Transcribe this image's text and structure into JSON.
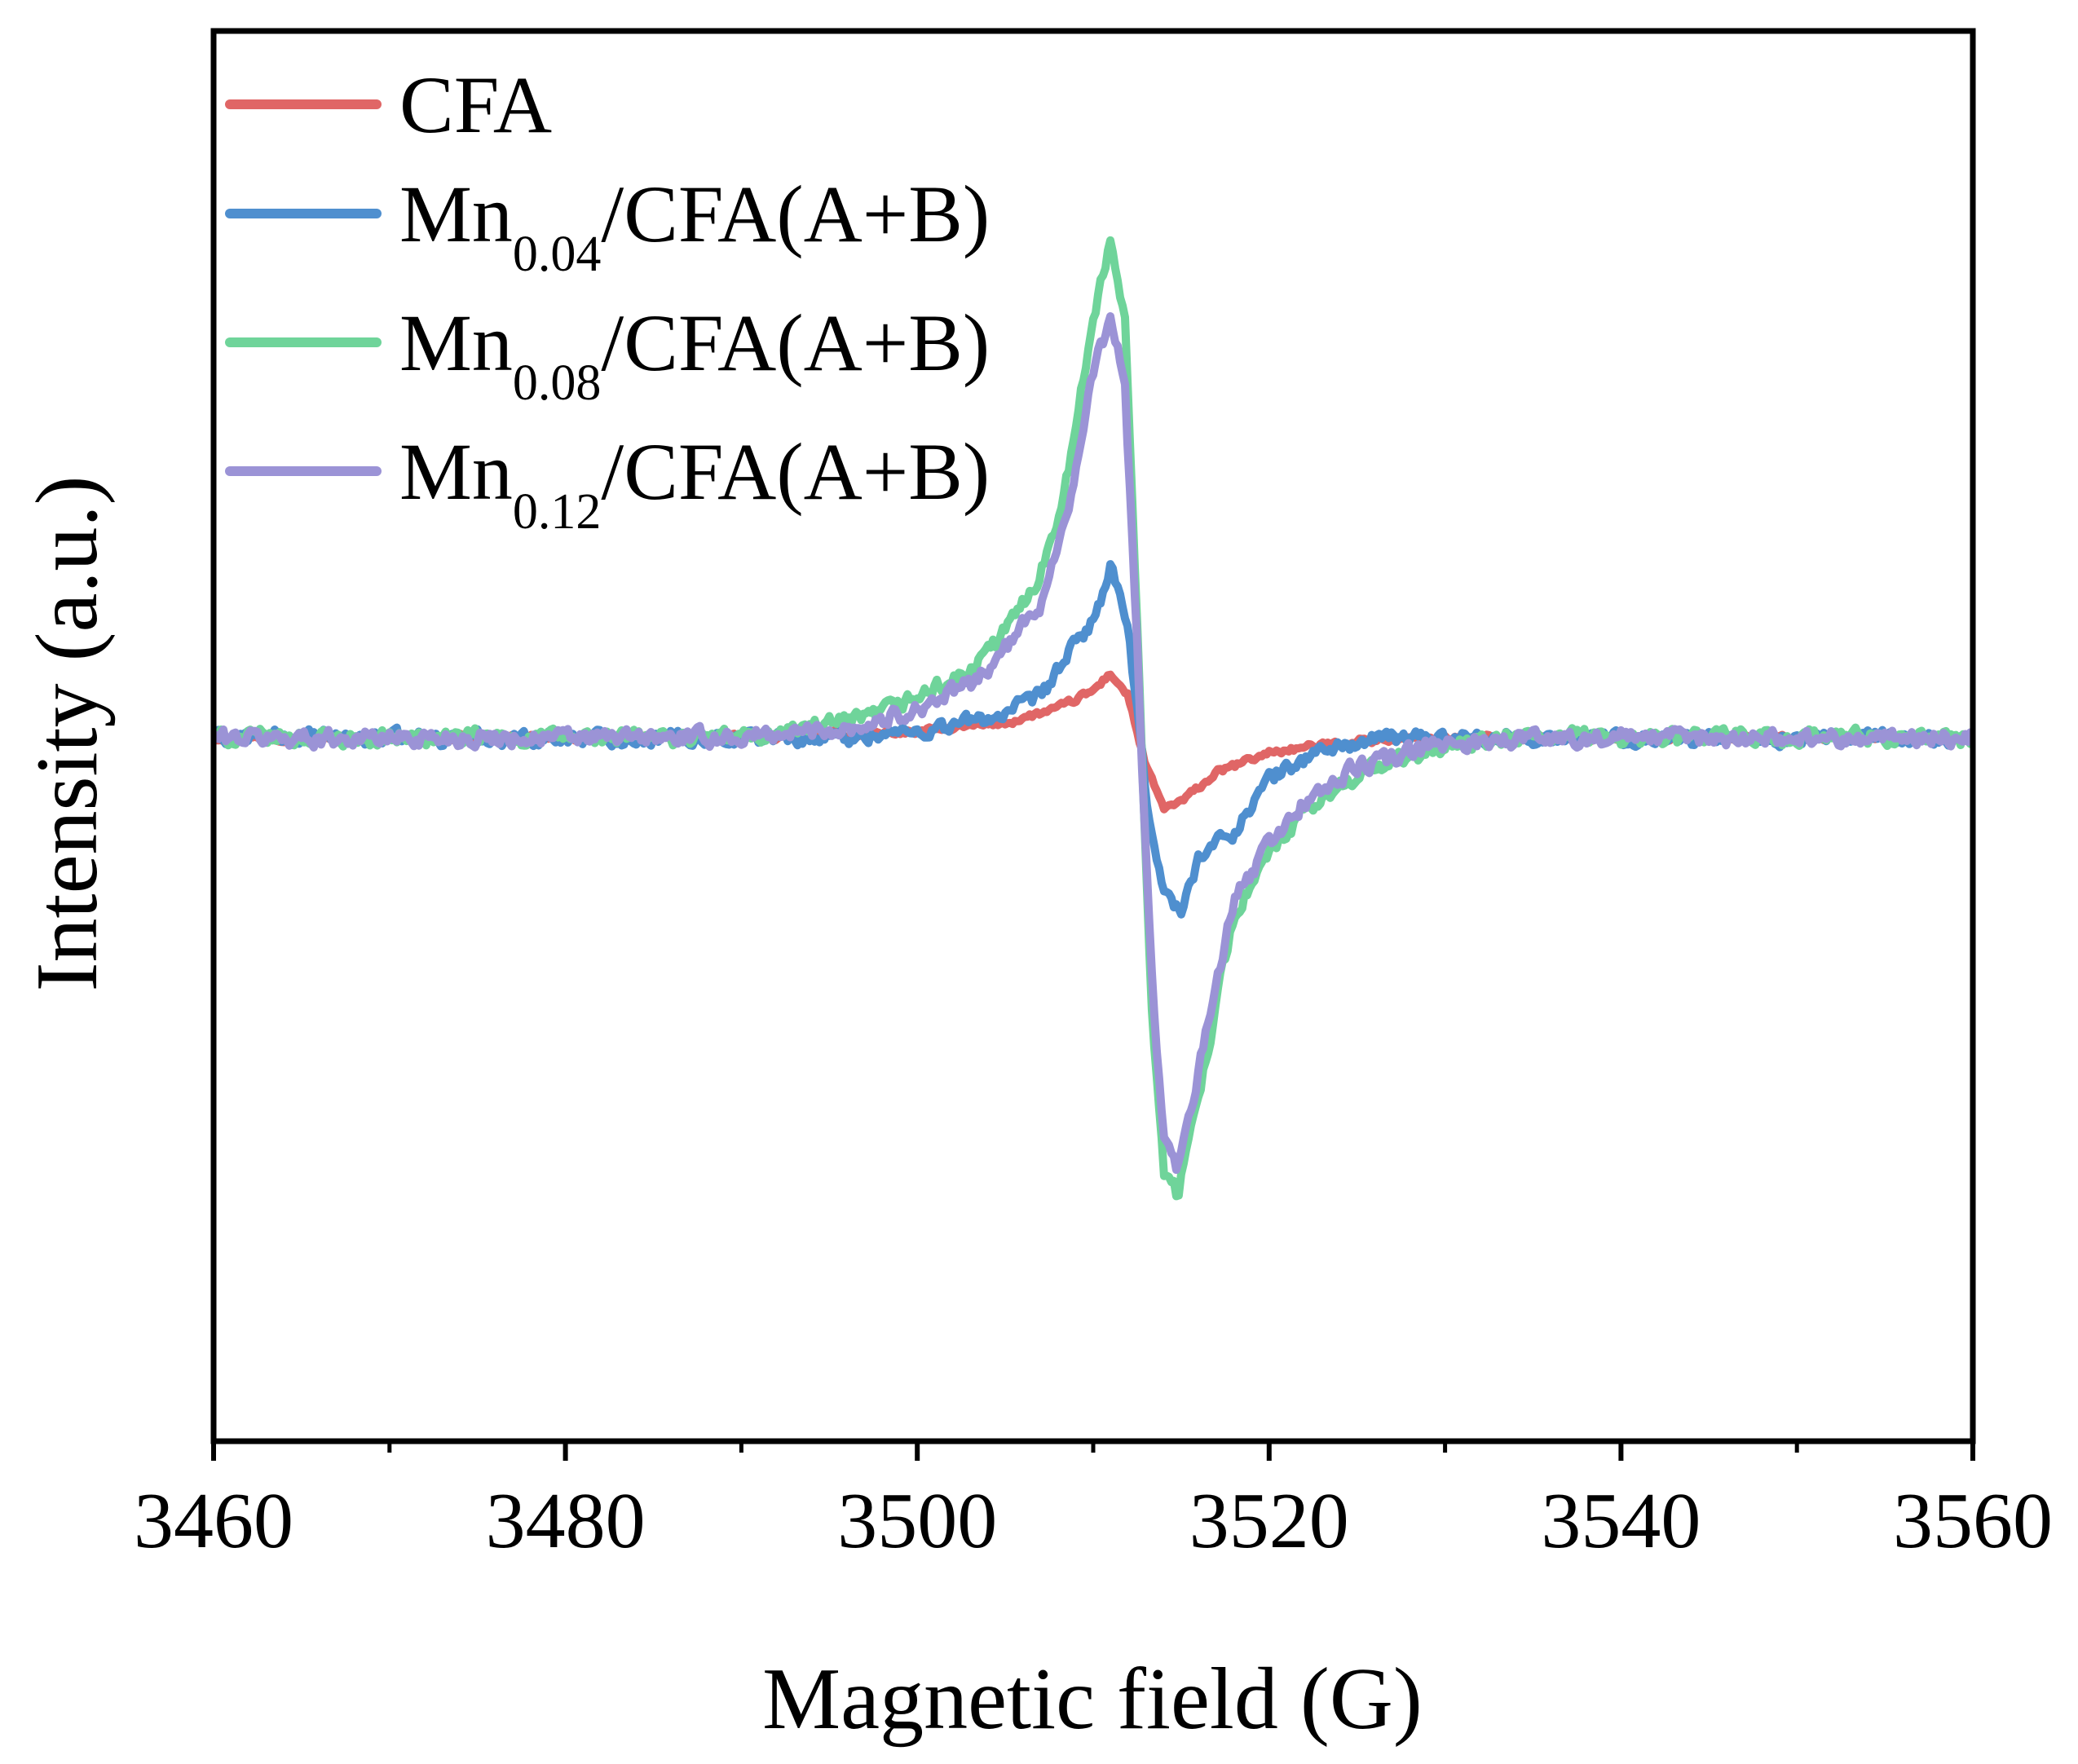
{
  "chart_data": {
    "type": "line",
    "title": "",
    "xlabel": "Magnetic field (G)",
    "ylabel": "Intensity (a.u.)",
    "xlim": [
      3460,
      3560
    ],
    "ylim": [
      -1.0,
      1.0
    ],
    "x_ticks": [
      3460,
      3480,
      3500,
      3520,
      3540,
      3560
    ],
    "x_tick_labels": [
      "3460",
      "3480",
      "3500",
      "3520",
      "3540",
      "3560"
    ],
    "y_ticks_shown": false,
    "grid": false,
    "legend_position": "top-left",
    "series": [
      {
        "name": "CFA",
        "label_main": "CFA",
        "label_sub": "",
        "label_suffix": "",
        "color": "#e06666",
        "amplitude_pos": 0.11,
        "amplitude_neg": -0.12,
        "noise": 0.008,
        "points": [
          [
            3460,
            0.0
          ],
          [
            3490,
            0.0
          ],
          [
            3500,
            0.01
          ],
          [
            3505,
            0.025
          ],
          [
            3508,
            0.05
          ],
          [
            3510,
            0.08
          ],
          [
            3511,
            0.11
          ],
          [
            3512,
            0.07
          ],
          [
            3513,
            -0.05
          ],
          [
            3514,
            -0.12
          ],
          [
            3515,
            -0.11
          ],
          [
            3517,
            -0.06
          ],
          [
            3520,
            -0.025
          ],
          [
            3525,
            -0.005
          ],
          [
            3530,
            0.0
          ],
          [
            3560,
            0.0
          ]
        ]
      },
      {
        "name": "Mn0.04/CFA(A+B)",
        "label_main": "Mn",
        "label_sub": "0.04",
        "label_suffix": "/CFA(A+B)",
        "color": "#4f8fcf",
        "amplitude_pos": 0.29,
        "amplitude_neg": -0.3,
        "noise": 0.02,
        "points": [
          [
            3460,
            0.0
          ],
          [
            3495,
            0.0
          ],
          [
            3500,
            0.01
          ],
          [
            3505,
            0.04
          ],
          [
            3507,
            0.07
          ],
          [
            3509,
            0.16
          ],
          [
            3510,
            0.2
          ],
          [
            3511,
            0.29
          ],
          [
            3512,
            0.18
          ],
          [
            3513,
            -0.1
          ],
          [
            3514,
            -0.26
          ],
          [
            3515,
            -0.3
          ],
          [
            3516,
            -0.2
          ],
          [
            3518,
            -0.16
          ],
          [
            3520,
            -0.07
          ],
          [
            3523,
            -0.02
          ],
          [
            3527,
            0.0
          ],
          [
            3560,
            0.0
          ]
        ]
      },
      {
        "name": "Mn0.08/CFA(A+B)",
        "label_main": "Mn",
        "label_sub": "0.08",
        "label_suffix": "/CFA(A+B)",
        "color": "#6fd49a",
        "amplitude_pos": 0.84,
        "amplitude_neg": -0.78,
        "noise": 0.022,
        "points": [
          [
            3460,
            0.0
          ],
          [
            3490,
            0.0
          ],
          [
            3497,
            0.03
          ],
          [
            3500,
            0.07
          ],
          [
            3503,
            0.11
          ],
          [
            3505,
            0.18
          ],
          [
            3507,
            0.28
          ],
          [
            3508,
            0.38
          ],
          [
            3509,
            0.52
          ],
          [
            3510,
            0.72
          ],
          [
            3511,
            0.84
          ],
          [
            3511.8,
            0.72
          ],
          [
            3512.5,
            0.2
          ],
          [
            3513.3,
            -0.45
          ],
          [
            3514,
            -0.74
          ],
          [
            3514.8,
            -0.78
          ],
          [
            3515.5,
            -0.68
          ],
          [
            3517,
            -0.45
          ],
          [
            3518,
            -0.3
          ],
          [
            3520,
            -0.2
          ],
          [
            3522,
            -0.13
          ],
          [
            3525,
            -0.06
          ],
          [
            3530,
            -0.015
          ],
          [
            3535,
            0.0
          ],
          [
            3560,
            0.0
          ]
        ]
      },
      {
        "name": "Mn0.12/CFA(A+B)",
        "label_main": "Mn",
        "label_sub": "0.12",
        "label_suffix": "/CFA(A+B)",
        "color": "#9b93d6",
        "amplitude_pos": 0.72,
        "amplitude_neg": -0.74,
        "noise": 0.022,
        "points": [
          [
            3460,
            0.0
          ],
          [
            3490,
            0.0
          ],
          [
            3497,
            0.02
          ],
          [
            3500,
            0.05
          ],
          [
            3503,
            0.09
          ],
          [
            3505,
            0.15
          ],
          [
            3507,
            0.23
          ],
          [
            3508,
            0.33
          ],
          [
            3509,
            0.45
          ],
          [
            3510,
            0.62
          ],
          [
            3511,
            0.72
          ],
          [
            3511.8,
            0.6
          ],
          [
            3512.5,
            0.15
          ],
          [
            3513.3,
            -0.4
          ],
          [
            3514,
            -0.68
          ],
          [
            3514.8,
            -0.74
          ],
          [
            3515.5,
            -0.64
          ],
          [
            3517,
            -0.42
          ],
          [
            3518,
            -0.28
          ],
          [
            3520,
            -0.18
          ],
          [
            3522,
            -0.11
          ],
          [
            3525,
            -0.05
          ],
          [
            3530,
            -0.01
          ],
          [
            3535,
            0.0
          ],
          [
            3560,
            0.0
          ]
        ]
      }
    ]
  }
}
